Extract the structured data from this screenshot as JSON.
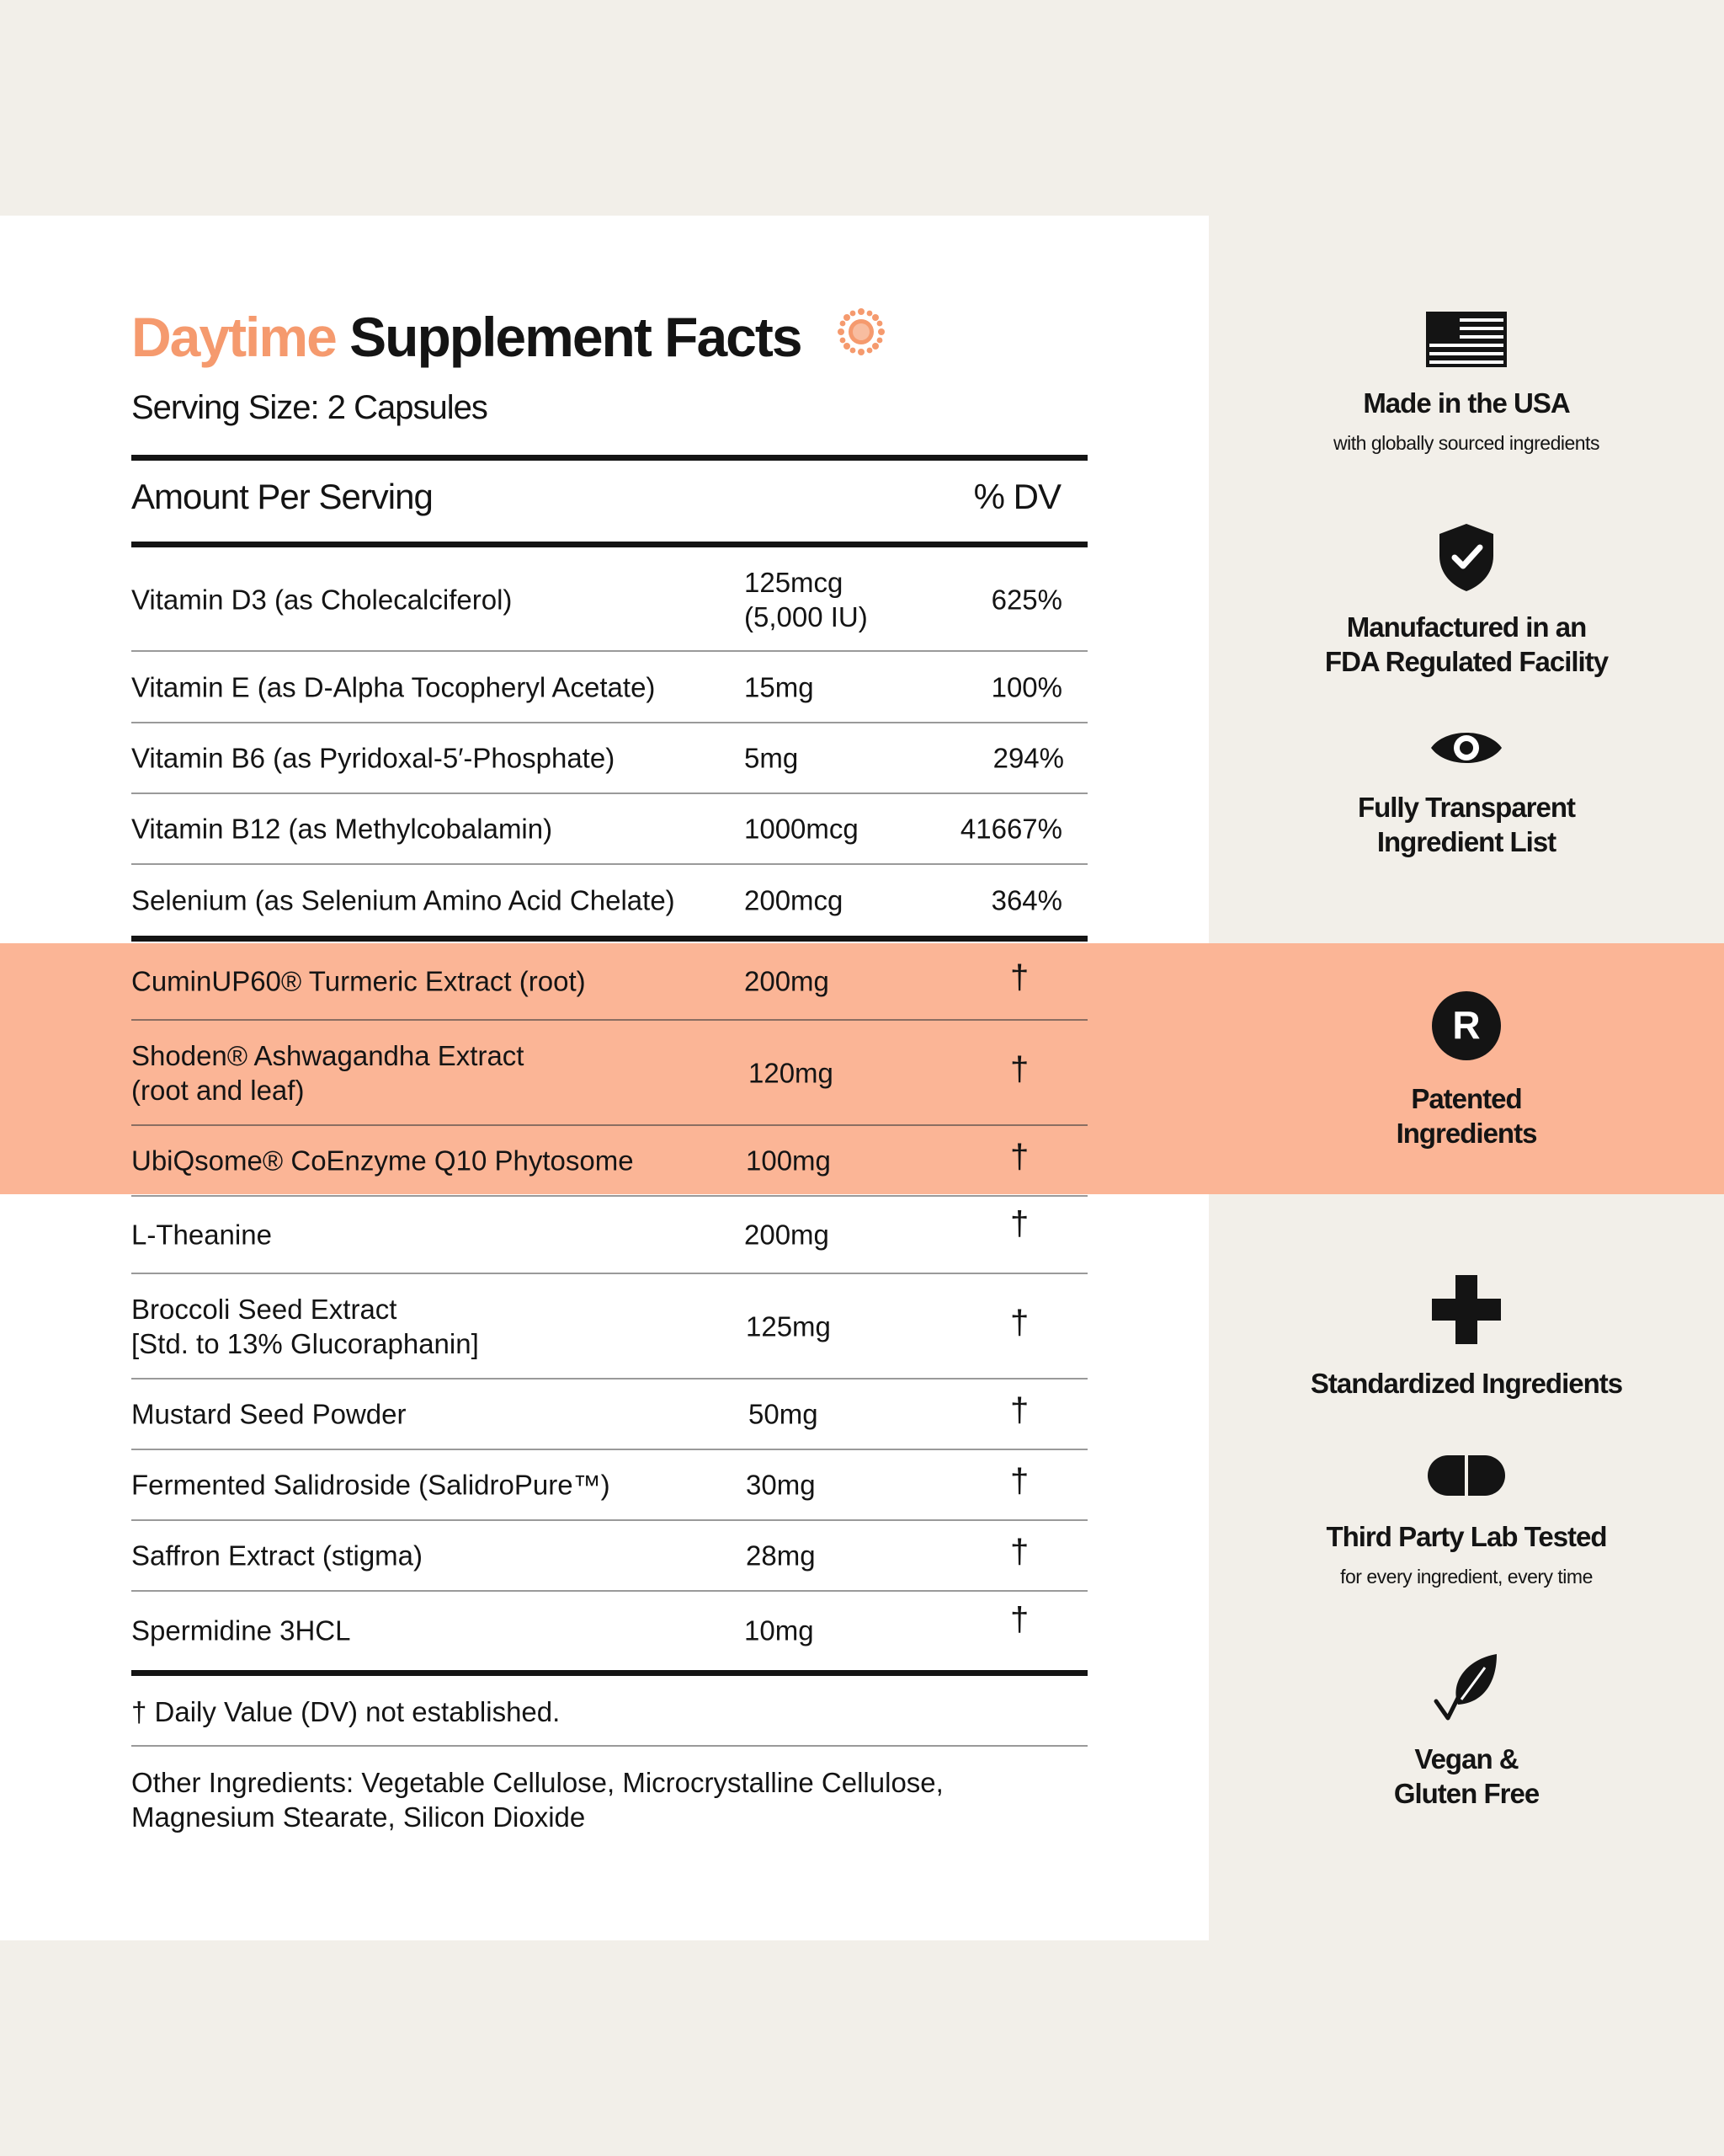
{
  "title": {
    "accent": "Daytime",
    "main": "Supplement Facts"
  },
  "serving_size": "Serving Size: 2 Capsules",
  "header": {
    "left": "Amount Per Serving",
    "right": "% DV"
  },
  "vitamins": [
    {
      "name": "Vitamin D3 (as Cholecalciferol)",
      "amount": "125mcg",
      "amount2": "(5,000 IU)",
      "dv": "625%"
    },
    {
      "name": "Vitamin E (as D-Alpha Tocopheryl Acetate)",
      "amount": "15mg",
      "dv": "100%"
    },
    {
      "name": "Vitamin B6 (as Pyridoxal-5′-Phosphate)",
      "amount": "5mg",
      "dv": "294%"
    },
    {
      "name": "Vitamin B12 (as Methylcobalamin)",
      "amount": "1000mcg",
      "dv": "41667%"
    },
    {
      "name": "Selenium (as Selenium Amino Acid Chelate)",
      "amount": "200mcg",
      "dv": "364%"
    }
  ],
  "patented": [
    {
      "name": "CuminUP60® Turmeric Extract (root)",
      "amount": "200mg",
      "dv": "†"
    },
    {
      "name": "Shoden® Ashwagandha Extract",
      "name2": "(root and leaf)",
      "amount": "120mg",
      "dv": "†"
    },
    {
      "name": "UbiQsome® CoEnzyme Q10 Phytosome",
      "amount": "100mg",
      "dv": "†"
    }
  ],
  "others": [
    {
      "name": "L-Theanine",
      "amount": "200mg",
      "dv": "†"
    },
    {
      "name": "Broccoli Seed Extract",
      "name2": "[Std. to 13% Glucoraphanin]",
      "amount": "125mg",
      "dv": "†"
    },
    {
      "name": "Mustard Seed Powder",
      "amount": "50mg",
      "dv": "†"
    },
    {
      "name": "Fermented Salidroside (SalidroPure™)",
      "amount": "30mg",
      "dv": "†"
    },
    {
      "name": "Saffron Extract (stigma)",
      "amount": "28mg",
      "dv": "†"
    },
    {
      "name": "Spermidine 3HCL",
      "amount": "10mg",
      "dv": "†"
    }
  ],
  "footnote": "† Daily Value (DV) not established.",
  "other_ingredients": {
    "line1": "Other Ingredients: Vegetable Cellulose, Microcrystalline Cellulose,",
    "line2": "Magnesium Stearate, Silicon Dioxide"
  },
  "features": [
    {
      "icon": "us-flag-icon",
      "title": "Made in the USA",
      "subtitle": "with globally sourced ingredients"
    },
    {
      "icon": "shield-check-icon",
      "title1": "Manufactured in an",
      "title2": "FDA Regulated Facility"
    },
    {
      "icon": "eye-icon",
      "title1": "Fully Transparent",
      "title2": "Ingredient List"
    },
    {
      "icon": "registered-icon",
      "title1": "Patented",
      "title2": "Ingredients"
    },
    {
      "icon": "plus-icon",
      "title": "Standardized Ingredients"
    },
    {
      "icon": "capsule-icon",
      "title": "Third Party Lab Tested",
      "subtitle": "for every ingredient, every time"
    },
    {
      "icon": "leaf-check-icon",
      "title1": "Vegan &",
      "title2": "Gluten Free"
    }
  ],
  "colors": {
    "accent": "#f59a6e",
    "band": "#fbb596",
    "page": "#f2efe9",
    "ink": "#141414"
  }
}
